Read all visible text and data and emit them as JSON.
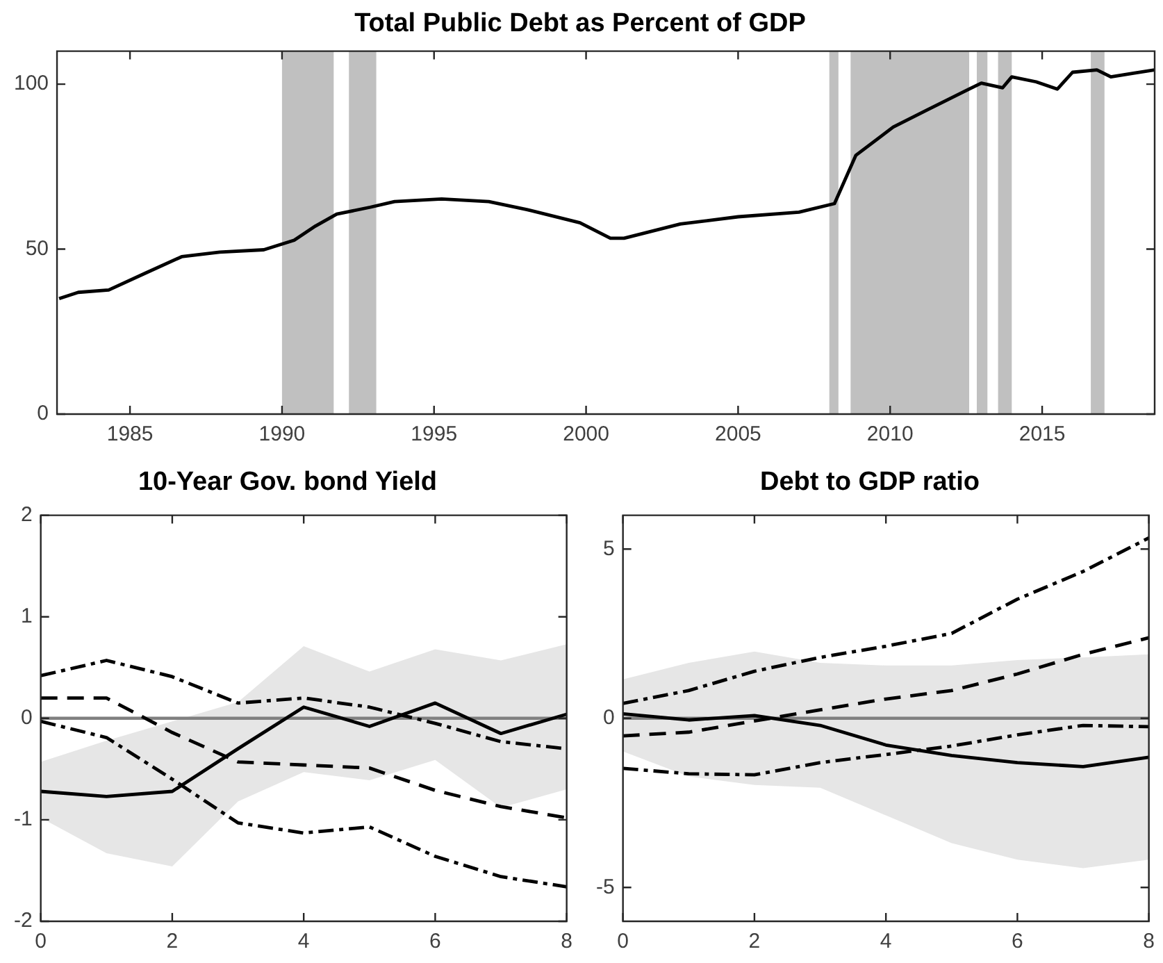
{
  "chart_data": [
    {
      "type": "line",
      "title": "Total Public Debt as Percent of GDP",
      "x": [
        1982.67,
        1983.3,
        1984.3,
        1985.5,
        1986.7,
        1987.95,
        1989.4,
        1990.4,
        1991.1,
        1991.8,
        1992.9,
        1993.7,
        1995.25,
        1996.8,
        1998.05,
        1999.8,
        2000.8,
        2001.25,
        2003.1,
        2005.0,
        2007.0,
        2008.17,
        2008.87,
        2010.1,
        2011.2,
        2012.6,
        2013.0,
        2013.7,
        2014.0,
        2014.8,
        2015.5,
        2016.0,
        2016.8,
        2017.26,
        2018.0,
        2018.7
      ],
      "values": [
        35,
        36.9,
        37.6,
        42.7,
        47.7,
        49.1,
        49.8,
        52.7,
        57,
        60.6,
        62.7,
        64.4,
        65.2,
        64.4,
        62,
        58,
        53.3,
        53.3,
        57.6,
        59.8,
        61.2,
        63.8,
        78.4,
        87,
        92.1,
        98.5,
        100.3,
        98.9,
        102.2,
        100.7,
        98.5,
        103.6,
        104.3,
        102.2,
        103.3,
        104.3
      ],
      "color": "#000000",
      "xlim": [
        1982.6,
        2018.7
      ],
      "xticks": [
        1985,
        1990,
        1995,
        2000,
        2005,
        2010,
        2015
      ],
      "ylim": [
        0,
        110
      ],
      "yticks": [
        0,
        50,
        100
      ],
      "bands": [
        {
          "axis": "x",
          "from": 1990.0,
          "to": 1991.7,
          "color": "#c0c0c0"
        },
        {
          "axis": "x",
          "from": 1992.2,
          "to": 1993.1,
          "color": "#c0c0c0"
        },
        {
          "axis": "x",
          "from": 2008.0,
          "to": 2008.3,
          "color": "#c0c0c0"
        },
        {
          "axis": "x",
          "from": 2008.7,
          "to": 2012.6,
          "color": "#c0c0c0"
        },
        {
          "axis": "x",
          "from": 2012.85,
          "to": 2013.2,
          "color": "#c0c0c0"
        },
        {
          "axis": "x",
          "from": 2013.55,
          "to": 2014.0,
          "color": "#c0c0c0"
        },
        {
          "axis": "x",
          "from": 2016.6,
          "to": 2017.05,
          "color": "#c0c0c0"
        }
      ],
      "grid": false,
      "legend": false
    },
    {
      "type": "line",
      "title": "10-Year Gov. bond Yield",
      "x": [
        0,
        1,
        2,
        3,
        4,
        5,
        6,
        7,
        8
      ],
      "xlim": [
        0,
        8
      ],
      "xticks": [
        0,
        2,
        4,
        6,
        8
      ],
      "ylim": [
        -2,
        2
      ],
      "yticks": [
        -2,
        -1,
        0,
        1,
        2
      ],
      "series": [
        {
          "color": "#000000",
          "line_style": "solid",
          "values": [
            -0.72,
            -0.77,
            -0.72,
            -0.3,
            0.11,
            -0.08,
            0.15,
            -0.15,
            0.04
          ],
          "lower": [
            -0.98,
            -1.33,
            -1.46,
            -0.82,
            -0.53,
            -0.61,
            -0.41,
            -0.88,
            -0.7
          ],
          "upper": [
            -0.43,
            -0.22,
            -0.03,
            0.16,
            0.71,
            0.46,
            0.68,
            0.57,
            0.73
          ]
        },
        {
          "color": "#000000",
          "line_style": "dashdot",
          "values": [
            0.42,
            0.57,
            0.41,
            0.15,
            0.2,
            0.11,
            -0.05,
            -0.23,
            -0.3
          ]
        },
        {
          "color": "#000000",
          "line_style": "dashed",
          "values": [
            0.2,
            0.2,
            -0.14,
            -0.43,
            -0.46,
            -0.49,
            -0.71,
            -0.87,
            -0.98
          ]
        },
        {
          "color": "#000000",
          "line_style": "dashdot",
          "values": [
            -0.03,
            -0.19,
            -0.6,
            -1.03,
            -1.13,
            -1.07,
            -1.36,
            -1.56,
            -1.66
          ]
        }
      ],
      "ref_lines": [
        {
          "axis": "y",
          "value": 0,
          "color": "#808080"
        }
      ],
      "grid": false,
      "legend": false
    },
    {
      "type": "line",
      "title": "Debt to GDP ratio",
      "x": [
        0,
        1,
        2,
        3,
        4,
        5,
        6,
        7,
        8
      ],
      "xlim": [
        0,
        8
      ],
      "xticks": [
        0,
        2,
        4,
        6,
        8
      ],
      "ylim": [
        -6,
        6
      ],
      "yticks": [
        {
          "value": -5,
          "label": "-5"
        },
        {
          "value": 0,
          "label": "0"
        },
        {
          "value": 5,
          "label": "5"
        }
      ],
      "series": [
        {
          "color": "#000000",
          "line_style": "solid",
          "values": [
            0.13,
            -0.05,
            0.08,
            -0.21,
            -0.79,
            -1.1,
            -1.31,
            -1.43,
            -1.15
          ],
          "lower": [
            -0.98,
            -1.72,
            -1.97,
            -2.05,
            -2.87,
            -3.69,
            -4.18,
            -4.43,
            -4.18
          ],
          "upper": [
            1.15,
            1.64,
            1.97,
            1.64,
            1.56,
            1.56,
            1.72,
            1.8,
            1.89
          ]
        },
        {
          "color": "#000000",
          "line_style": "dashdot",
          "values": [
            0.44,
            0.82,
            1.39,
            1.8,
            2.13,
            2.51,
            3.52,
            4.34,
            5.33
          ]
        },
        {
          "color": "#000000",
          "line_style": "dashed",
          "values": [
            -0.52,
            -0.41,
            -0.08,
            0.25,
            0.57,
            0.82,
            1.31,
            1.89,
            2.38
          ]
        },
        {
          "color": "#000000",
          "line_style": "dashdot",
          "values": [
            -1.48,
            -1.64,
            -1.67,
            -1.31,
            -1.07,
            -0.82,
            -0.49,
            -0.21,
            -0.25
          ]
        }
      ],
      "ref_lines": [
        {
          "axis": "y",
          "value": 0,
          "color": "#808080"
        }
      ],
      "grid": false,
      "legend": false
    }
  ]
}
